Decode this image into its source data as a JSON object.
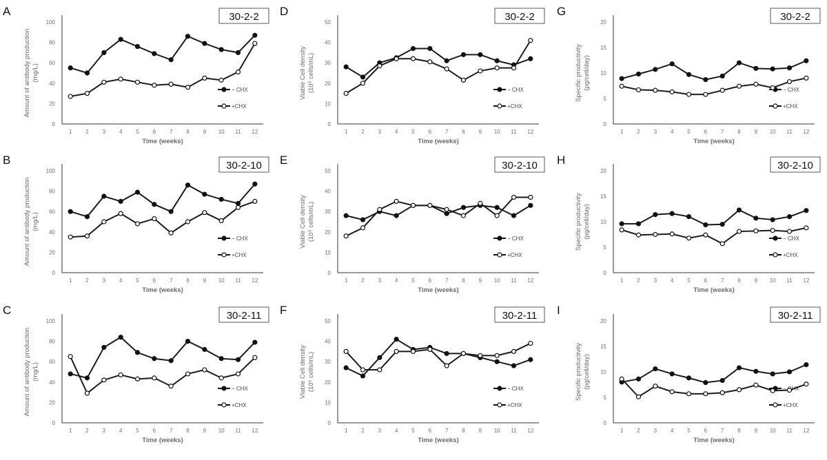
{
  "chart_data": [
    {
      "panel": "A",
      "type": "line",
      "box_label": "30-2-2",
      "ylabel": [
        "Amount of antibody production",
        "(mg/L)"
      ],
      "xlabel": "Time (weeks)",
      "ylim": [
        0,
        100
      ],
      "yticks": [
        0,
        20,
        40,
        60,
        80,
        100
      ],
      "x": [
        1,
        2,
        3,
        4,
        5,
        6,
        7,
        8,
        9,
        10,
        11,
        12
      ],
      "series": [
        {
          "name": "− CHX",
          "marker": "filled",
          "values": [
            55,
            50,
            70,
            83,
            76,
            69,
            63,
            86,
            79,
            73,
            70,
            87
          ]
        },
        {
          "name": "+CHX",
          "marker": "open",
          "values": [
            27,
            30,
            41,
            44,
            41,
            38,
            39,
            36,
            45,
            43,
            51,
            79
          ]
        }
      ]
    },
    {
      "panel": "D",
      "type": "line",
      "box_label": "30-2-2",
      "ylabel": [
        "Viable Cell density",
        "(10⁵ cells/mL)"
      ],
      "xlabel": "Time (weeks)",
      "ylim": [
        0,
        50
      ],
      "yticks": [
        0,
        10,
        20,
        30,
        40,
        50
      ],
      "x": [
        1,
        2,
        3,
        4,
        5,
        6,
        7,
        8,
        9,
        10,
        11,
        12
      ],
      "series": [
        {
          "name": "− CHX",
          "marker": "filled",
          "values": [
            28,
            23,
            30,
            32.5,
            37,
            37,
            31,
            34,
            34,
            31,
            29,
            32
          ]
        },
        {
          "name": "+CHX",
          "marker": "open",
          "values": [
            15,
            20,
            28.5,
            32,
            32,
            30.5,
            27,
            21.5,
            26,
            27.5,
            27.5,
            41
          ]
        }
      ]
    },
    {
      "panel": "G",
      "type": "line",
      "box_label": "30-2-2",
      "ylabel": [
        "Specific productivity",
        "(pg/cell/day)"
      ],
      "xlabel": "Time (weeks)",
      "ylim": [
        0,
        20
      ],
      "yticks": [
        0,
        5,
        10,
        15,
        20
      ],
      "x": [
        1,
        2,
        3,
        4,
        5,
        6,
        7,
        8,
        9,
        10,
        11,
        12
      ],
      "series": [
        {
          "name": "− CHX",
          "marker": "filled",
          "values": [
            8.9,
            9.8,
            10.7,
            11.8,
            9.7,
            8.7,
            9.4,
            12.0,
            10.9,
            10.8,
            11.0,
            12.4
          ]
        },
        {
          "name": "+CHX",
          "marker": "open",
          "values": [
            7.4,
            6.7,
            6.6,
            6.3,
            5.8,
            5.8,
            6.6,
            7.4,
            7.8,
            7.1,
            8.3,
            9.0
          ]
        }
      ]
    },
    {
      "panel": "B",
      "type": "line",
      "box_label": "30-2-10",
      "ylabel": [
        "Amount of antibody production",
        "(mg/L)"
      ],
      "xlabel": "Time (weeks)",
      "ylim": [
        0,
        100
      ],
      "yticks": [
        0,
        20,
        40,
        60,
        80,
        100
      ],
      "x": [
        1,
        2,
        3,
        4,
        5,
        6,
        7,
        8,
        9,
        10,
        11,
        12
      ],
      "series": [
        {
          "name": "− CHX",
          "marker": "filled",
          "values": [
            60,
            55,
            75,
            70,
            79,
            67,
            60,
            86,
            77,
            72,
            68,
            87
          ]
        },
        {
          "name": "+CHX",
          "marker": "open",
          "values": [
            35,
            36,
            50,
            58,
            48,
            53,
            39,
            50,
            59,
            51,
            64,
            70
          ]
        }
      ]
    },
    {
      "panel": "E",
      "type": "line",
      "box_label": "30-2-10",
      "ylabel": [
        "Viable Cell density",
        "(10⁵ cells/mL)"
      ],
      "xlabel": "Time (weeks)",
      "ylim": [
        0,
        50
      ],
      "yticks": [
        0,
        10,
        20,
        30,
        40,
        50
      ],
      "x": [
        1,
        2,
        3,
        4,
        5,
        6,
        7,
        8,
        9,
        10,
        11,
        12
      ],
      "series": [
        {
          "name": "− CHX",
          "marker": "filled",
          "values": [
            28,
            26,
            30,
            28,
            33,
            33,
            29,
            32,
            33,
            32,
            28,
            33
          ]
        },
        {
          "name": "+CHX",
          "marker": "open",
          "values": [
            18,
            22,
            31,
            35,
            33,
            33,
            31,
            28,
            34,
            28,
            37,
            37
          ]
        }
      ]
    },
    {
      "panel": "H",
      "type": "line",
      "box_label": "30-2-10",
      "ylabel": [
        "Specific productivity",
        "(pg/cell/day)"
      ],
      "xlabel": "Time (weeks)",
      "ylim": [
        0,
        20
      ],
      "yticks": [
        0,
        5,
        10,
        15,
        20
      ],
      "x": [
        1,
        2,
        3,
        4,
        5,
        6,
        7,
        8,
        9,
        10,
        11,
        12
      ],
      "series": [
        {
          "name": "− CHX",
          "marker": "filled",
          "values": [
            9.6,
            9.6,
            11.4,
            11.6,
            11.0,
            9.4,
            9.5,
            12.3,
            10.7,
            10.4,
            11.0,
            12.2
          ]
        },
        {
          "name": "+CHX",
          "marker": "open",
          "values": [
            8.4,
            7.4,
            7.5,
            7.6,
            6.8,
            7.4,
            5.7,
            8.1,
            8.2,
            8.3,
            8.1,
            8.8
          ]
        }
      ]
    },
    {
      "panel": "C",
      "type": "line",
      "box_label": "30-2-11",
      "ylabel": [
        "Amount of antibody production",
        "(mg/L)"
      ],
      "xlabel": "Time (weeks)",
      "ylim": [
        0,
        100
      ],
      "yticks": [
        0,
        20,
        40,
        60,
        80,
        100
      ],
      "x": [
        1,
        2,
        3,
        4,
        5,
        6,
        7,
        8,
        9,
        10,
        11,
        12
      ],
      "series": [
        {
          "name": "− CHX",
          "marker": "filled",
          "values": [
            48,
            44,
            74,
            84,
            69,
            63,
            61,
            80,
            72,
            63,
            62,
            79
          ]
        },
        {
          "name": "+CHX",
          "marker": "open",
          "values": [
            65,
            29,
            42,
            47,
            43,
            44,
            36,
            48,
            52,
            44,
            48,
            64
          ]
        }
      ]
    },
    {
      "panel": "F",
      "type": "line",
      "box_label": "30-2-11",
      "ylabel": [
        "Viable Cell density",
        "(10⁵ cells/mL)"
      ],
      "xlabel": "Time (weeks)",
      "ylim": [
        0,
        50
      ],
      "yticks": [
        0,
        10,
        20,
        30,
        40,
        50
      ],
      "x": [
        1,
        2,
        3,
        4,
        5,
        6,
        7,
        8,
        9,
        10,
        11,
        12
      ],
      "series": [
        {
          "name": "− CHX",
          "marker": "filled",
          "values": [
            27,
            23,
            32,
            41,
            36,
            37,
            34,
            34,
            32,
            30,
            28,
            31
          ]
        },
        {
          "name": "+CHX",
          "marker": "open",
          "values": [
            35,
            26,
            26,
            35,
            35,
            36,
            28,
            34,
            33,
            33,
            35,
            39
          ]
        }
      ]
    },
    {
      "panel": "I",
      "type": "line",
      "box_label": "30-2-11",
      "ylabel": [
        "Specific productivity",
        "(pg/cell/day)"
      ],
      "xlabel": "Time (weeks)",
      "ylim": [
        0,
        20
      ],
      "yticks": [
        0,
        5,
        10,
        15,
        20
      ],
      "x": [
        1,
        2,
        3,
        4,
        5,
        6,
        7,
        8,
        9,
        10,
        11,
        12
      ],
      "series": [
        {
          "name": "− CHX",
          "marker": "filled",
          "values": [
            8.0,
            8.6,
            10.6,
            9.6,
            8.8,
            7.9,
            8.3,
            10.8,
            10.1,
            9.6,
            10.0,
            11.4
          ]
        },
        {
          "name": "+CHX",
          "marker": "open",
          "values": [
            8.6,
            5.1,
            7.2,
            6.1,
            5.7,
            5.7,
            5.9,
            6.5,
            7.4,
            6.3,
            6.4,
            7.6
          ]
        }
      ]
    }
  ],
  "colors": {
    "line": "#1a1a1a",
    "tick_text": "#707070",
    "axis_label": "#6a6a6a"
  }
}
